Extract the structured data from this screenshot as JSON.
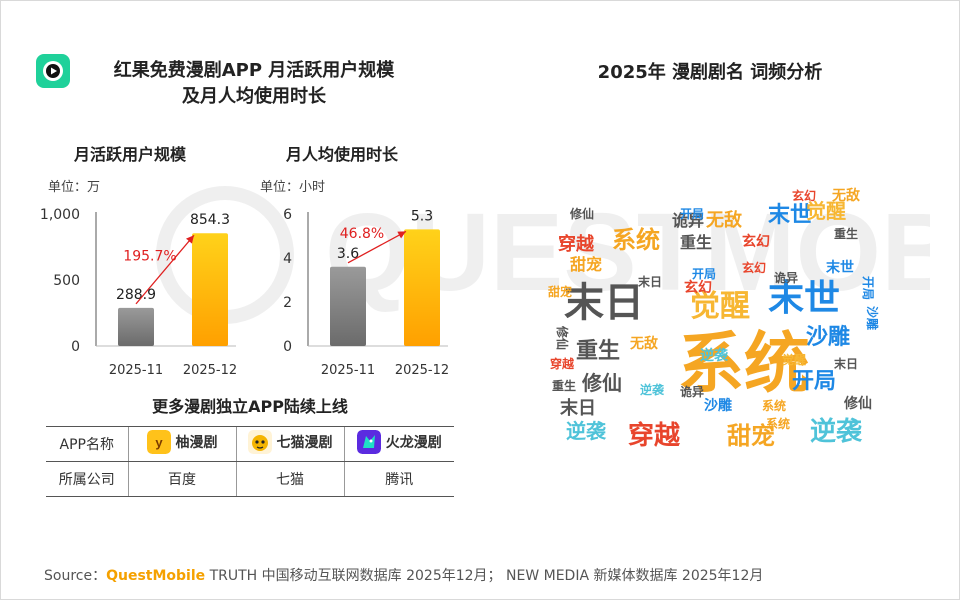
{
  "page": {
    "title_left_line1": "红果免费漫剧APP 月活跃用户规模",
    "title_left_line2": "及月人均使用时长",
    "title_right": "2025年 漫剧剧名 词频分析",
    "watermark": "QUESTMOBILE"
  },
  "chart_data": [
    {
      "type": "bar",
      "title": "月活跃用户规模",
      "unit_label": "单位：万",
      "categories": [
        "2025-11",
        "2025-12"
      ],
      "values": [
        288.9,
        854.3
      ],
      "value_labels": [
        "288.9",
        "854.3"
      ],
      "ylim": [
        0,
        1000
      ],
      "yticks": [
        0,
        500,
        1000
      ],
      "ytick_labels": [
        "0",
        "500",
        "1,000"
      ],
      "growth_label": "195.7%",
      "colors": [
        "#8c8c8c",
        "#ffb400"
      ],
      "growth_color": "#e02020"
    },
    {
      "type": "bar",
      "title": "月人均使用时长",
      "unit_label": "单位：小时",
      "categories": [
        "2025-11",
        "2025-12"
      ],
      "values": [
        3.6,
        5.3
      ],
      "value_labels": [
        "3.6",
        "5.3"
      ],
      "ylim": [
        0,
        6
      ],
      "yticks": [
        0,
        2,
        4,
        6
      ],
      "ytick_labels": [
        "0",
        "2",
        "4",
        "6"
      ],
      "growth_label": "46.8%",
      "colors": [
        "#8c8c8c",
        "#ffb400"
      ],
      "growth_color": "#e02020"
    }
  ],
  "more_apps": {
    "title": "更多漫剧独立APP陆续上线",
    "row_header_app": "APP名称",
    "row_header_company": "所属公司",
    "apps": [
      {
        "name": "柚漫剧",
        "company": "百度",
        "icon": "youmanju-app-icon"
      },
      {
        "name": "七猫漫剧",
        "company": "七猫",
        "icon": "qimao-manju-app-icon"
      },
      {
        "name": "火龙漫剧",
        "company": "腾讯",
        "icon": "huolong-manju-app-icon"
      }
    ]
  },
  "word_cloud": {
    "words": [
      {
        "text": "系统",
        "color": "#f5a623"
      },
      {
        "text": "末日",
        "color": "#555555"
      },
      {
        "text": "末世",
        "color": "#1e88e5"
      },
      {
        "text": "觉醒",
        "color": "#f7b733"
      },
      {
        "text": "穿越",
        "color": "#e8452c"
      },
      {
        "text": "甜宠",
        "color": "#f5a623"
      },
      {
        "text": "逆袭",
        "color": "#4fc3d9"
      },
      {
        "text": "沙雕",
        "color": "#1e88e5"
      },
      {
        "text": "重生",
        "color": "#555555"
      },
      {
        "text": "修仙",
        "color": "#555555"
      },
      {
        "text": "开局",
        "color": "#1e88e5"
      },
      {
        "text": "无敌",
        "color": "#f5a623"
      },
      {
        "text": "玄幻",
        "color": "#e8452c"
      },
      {
        "text": "诡异",
        "color": "#555555"
      }
    ]
  },
  "source": {
    "prefix": "Source：",
    "brand": "QuestMobile",
    "text": " TRUTH 中国移动互联网数据库 2025年12月； NEW MEDIA 新媒体数据库 2025年12月"
  }
}
